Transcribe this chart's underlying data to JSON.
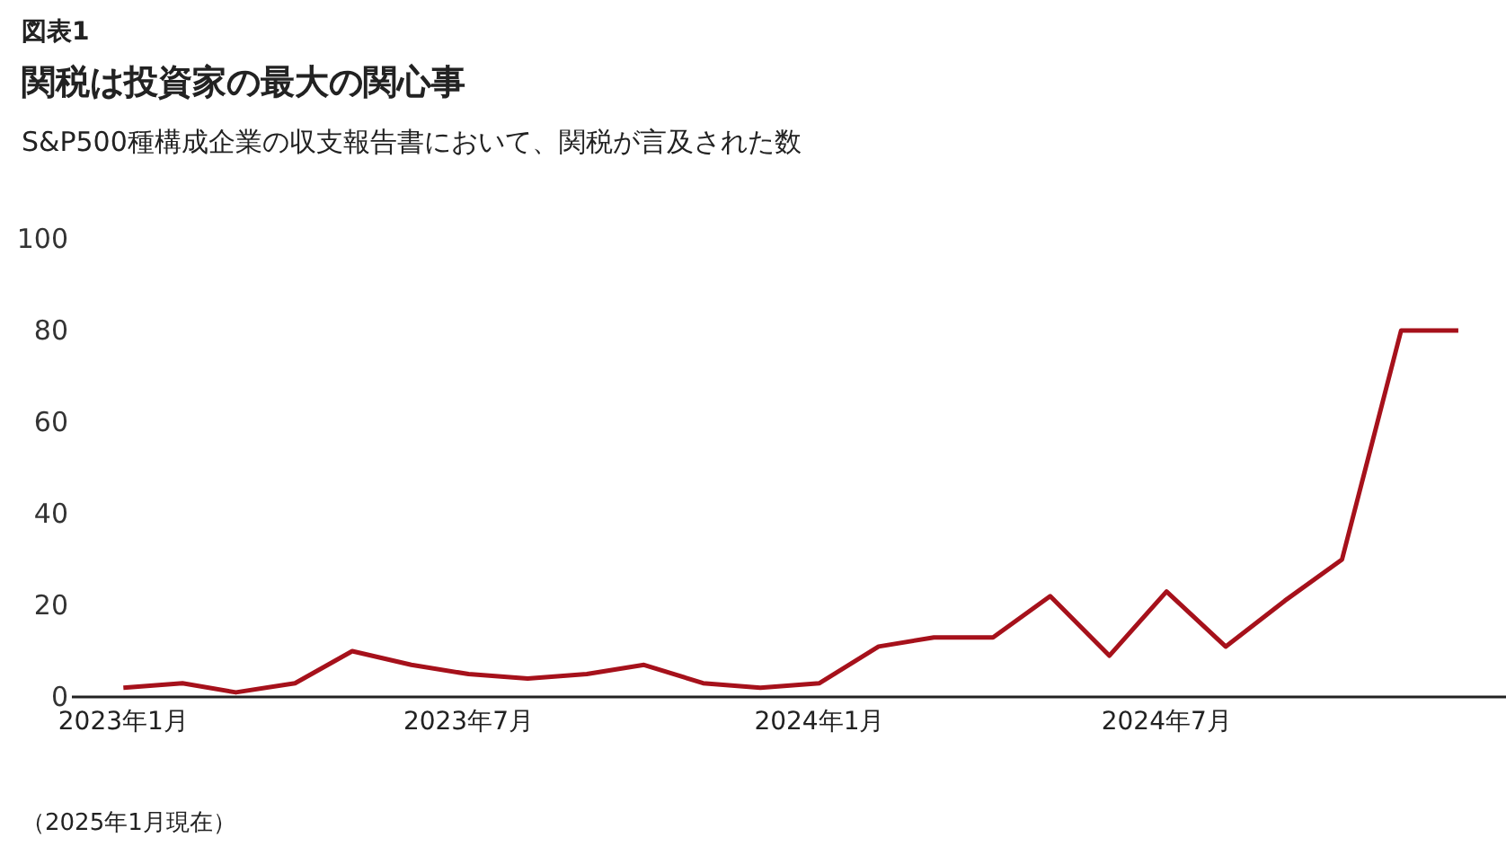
{
  "chart_data": {
    "type": "line",
    "title": "関税は投資家の最大の関心事",
    "subtitle": "S&P500種構成企業の収支報告書において、関税が言及された数",
    "annotations": [
      "図表1",
      "（2025年1月現在）"
    ],
    "x": [
      "2023-01",
      "2023-02",
      "2023-03",
      "2023-04",
      "2023-05",
      "2023-06",
      "2023-07",
      "2023-08",
      "2023-09",
      "2023-10",
      "2023-11",
      "2023-12",
      "2024-01",
      "2024-02",
      "2024-03",
      "2024-04",
      "2024-05",
      "2024-06",
      "2024-07",
      "2024-08",
      "2024-09",
      "2024-10",
      "2024-11",
      "2024-12"
    ],
    "series": [
      {
        "color": "#a6111b",
        "values": [
          2,
          3,
          1,
          3,
          10,
          7,
          5,
          4,
          5,
          7,
          3,
          2,
          3,
          11,
          13,
          13,
          22,
          9,
          23,
          11,
          21,
          30,
          80,
          80
        ]
      }
    ],
    "xlim": [
      "2022-12-05",
      "2024-12-26"
    ],
    "xticks": [
      {
        "value": "2023-01",
        "label": "2023年1月"
      },
      {
        "value": "2023-07",
        "label": "2023年7月"
      },
      {
        "value": "2024-01",
        "label": "2024年1月"
      },
      {
        "value": "2024-07",
        "label": "2024年7月"
      }
    ],
    "ylim": [
      0,
      100
    ],
    "yticks": [
      0,
      20,
      40,
      60,
      80,
      100
    ],
    "grid": false,
    "marker": "none",
    "line_style": "solid"
  }
}
